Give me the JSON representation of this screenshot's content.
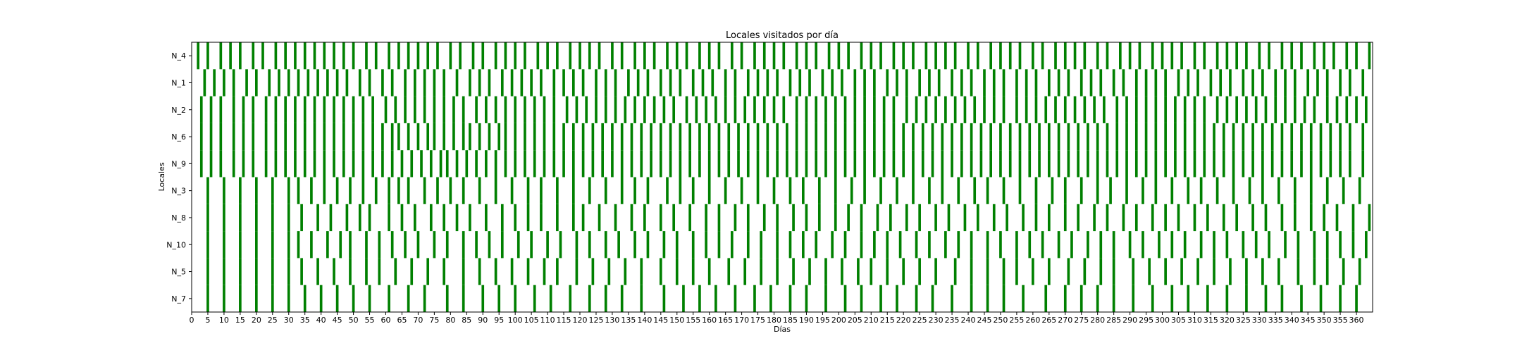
{
  "chart_data": {
    "type": "bar",
    "title": "Locales visitados por día",
    "xlabel": "Días",
    "ylabel": "Locales",
    "xlim": [
      0,
      365
    ],
    "x_ticks": [
      "0",
      "5",
      "10",
      "15",
      "20",
      "25",
      "30",
      "35",
      "40",
      "45",
      "50",
      "55",
      "60",
      "65",
      "70",
      "75",
      "80",
      "85",
      "90",
      "95",
      "100",
      "105",
      "110",
      "115",
      "120",
      "125",
      "130",
      "135",
      "140",
      "145",
      "150",
      "155",
      "160",
      "165",
      "170",
      "175",
      "180",
      "185",
      "190",
      "195",
      "200",
      "205",
      "210",
      "215",
      "220",
      "225",
      "230",
      "235",
      "240",
      "245",
      "250",
      "255",
      "260",
      "265",
      "270",
      "275",
      "280",
      "285",
      "290",
      "295",
      "300",
      "305",
      "310",
      "315",
      "320",
      "325",
      "330",
      "335",
      "340",
      "345",
      "350",
      "355",
      "360"
    ],
    "categories": [
      "N_4",
      "N_1",
      "N_2",
      "N_6",
      "N_9",
      "N_3",
      "N_8",
      "N_10",
      "N_5",
      "N_7"
    ],
    "bar_color": "#008000",
    "visits": {
      "N_4": [
        2,
        5,
        9,
        12,
        15,
        19,
        22,
        26,
        29,
        32,
        35,
        38,
        41,
        44,
        47,
        50,
        54,
        57,
        61,
        64,
        67,
        70,
        73,
        76,
        80,
        83,
        87,
        90,
        94,
        97,
        100,
        103,
        107,
        110,
        113,
        117,
        120,
        123,
        126,
        130,
        133,
        137,
        140,
        143,
        147,
        150,
        153,
        157,
        160,
        163,
        167,
        170,
        174,
        177,
        180,
        183,
        187,
        190,
        193,
        197,
        200,
        203,
        207,
        210,
        213,
        217,
        220,
        223,
        227,
        230,
        233,
        236,
        240,
        243,
        247,
        250,
        253,
        256,
        260,
        263,
        267,
        270,
        273,
        276,
        280,
        283,
        287,
        290,
        293,
        297,
        300,
        303,
        306,
        310,
        313,
        317,
        320,
        323,
        326,
        330,
        333,
        337,
        340,
        343,
        347,
        350,
        353,
        357,
        360,
        364
      ],
      "N_1": [
        4,
        7,
        10,
        13,
        17,
        20,
        24,
        27,
        30,
        33,
        36,
        39,
        42,
        45,
        48,
        52,
        55,
        59,
        62,
        66,
        69,
        72,
        75,
        78,
        82,
        86,
        89,
        92,
        96,
        99,
        102,
        105,
        108,
        112,
        115,
        118,
        121,
        125,
        128,
        131,
        135,
        138,
        141,
        145,
        148,
        151,
        155,
        158,
        161,
        165,
        168,
        172,
        175,
        178,
        181,
        185,
        188,
        191,
        195,
        198,
        201,
        205,
        208,
        211,
        215,
        218,
        221,
        225,
        228,
        231,
        235,
        238,
        241,
        245,
        248,
        251,
        255,
        258,
        261,
        265,
        268,
        271,
        275,
        278,
        281,
        285,
        288,
        292,
        295,
        298,
        301,
        305,
        308,
        311,
        315,
        318,
        321,
        325,
        328,
        331,
        335,
        338,
        341,
        345,
        348,
        351,
        355,
        358,
        362
      ],
      "N_2": [
        3,
        6,
        9,
        13,
        16,
        19,
        23,
        26,
        29,
        32,
        35,
        38,
        41,
        44,
        47,
        50,
        53,
        56,
        60,
        63,
        66,
        69,
        72,
        75,
        78,
        81,
        84,
        88,
        91,
        94,
        97,
        100,
        103,
        106,
        109,
        112,
        116,
        119,
        122,
        125,
        128,
        131,
        134,
        137,
        140,
        143,
        146,
        149,
        153,
        156,
        159,
        162,
        165,
        168,
        171,
        174,
        177,
        180,
        183,
        187,
        190,
        193,
        196,
        199,
        202,
        205,
        208,
        211,
        214,
        217,
        221,
        224,
        227,
        230,
        233,
        236,
        239,
        242,
        245,
        248,
        251,
        255,
        258,
        261,
        264,
        267,
        270,
        273,
        276,
        279,
        282,
        286,
        289,
        292,
        295,
        298,
        301,
        304,
        307,
        310,
        313,
        317,
        320,
        323,
        326,
        329,
        332,
        335,
        338,
        341,
        344,
        347,
        351,
        354,
        357,
        360,
        363
      ],
      "N_6": [
        3,
        6,
        9,
        13,
        16,
        19,
        23,
        26,
        29,
        32,
        35,
        38,
        41,
        44,
        47,
        50,
        53,
        56,
        59,
        62,
        64,
        67,
        70,
        73,
        75,
        78,
        81,
        84,
        86,
        89,
        92,
        95,
        97,
        100,
        103,
        106,
        109,
        112,
        115,
        118,
        121,
        124,
        127,
        130,
        133,
        136,
        139,
        142,
        145,
        148,
        151,
        154,
        157,
        160,
        163,
        166,
        169,
        172,
        175,
        178,
        181,
        184,
        187,
        190,
        193,
        196,
        199,
        202,
        205,
        208,
        211,
        214,
        217,
        220,
        223,
        226,
        229,
        232,
        235,
        238,
        241,
        244,
        247,
        250,
        253,
        256,
        259,
        262,
        265,
        268,
        271,
        274,
        277,
        280,
        283,
        286,
        289,
        292,
        295,
        298,
        301,
        304,
        307,
        310,
        313,
        316,
        319,
        322,
        325,
        328,
        331,
        334,
        337,
        340,
        343,
        346,
        349,
        352,
        355,
        358,
        362
      ],
      "N_9": [
        3,
        6,
        9,
        13,
        16,
        19,
        23,
        26,
        29,
        32,
        35,
        38,
        41,
        44,
        47,
        50,
        53,
        56,
        59,
        62,
        65,
        68,
        71,
        74,
        77,
        79,
        82,
        85,
        88,
        91,
        94,
        97,
        100,
        103,
        106,
        109,
        112,
        115,
        118,
        121,
        124,
        127,
        130,
        133,
        136,
        139,
        142,
        145,
        148,
        151,
        154,
        157,
        160,
        163,
        166,
        169,
        172,
        175,
        178,
        181,
        184,
        187,
        190,
        193,
        196,
        199,
        202,
        205,
        208,
        211,
        214,
        217,
        220,
        223,
        226,
        229,
        232,
        235,
        238,
        241,
        244,
        247,
        250,
        253,
        256,
        259,
        262,
        265,
        268,
        271,
        274,
        277,
        280,
        283,
        286,
        289,
        292,
        295,
        298,
        301,
        304,
        307,
        310,
        313,
        316,
        319,
        322,
        325,
        328,
        331,
        334,
        337,
        340,
        343,
        346,
        349,
        352,
        355,
        358,
        362
      ],
      "N_3": [
        5,
        10,
        15,
        20,
        25,
        30,
        33,
        37,
        41,
        45,
        49,
        53,
        57,
        61,
        64,
        67,
        72,
        76,
        80,
        84,
        89,
        94,
        99,
        104,
        108,
        113,
        118,
        123,
        128,
        133,
        137,
        141,
        147,
        151,
        155,
        160,
        165,
        170,
        175,
        180,
        185,
        189,
        194,
        199,
        204,
        208,
        213,
        218,
        223,
        228,
        232,
        237,
        242,
        246,
        251,
        256,
        261,
        266,
        270,
        275,
        280,
        284,
        289,
        294,
        298,
        303,
        308,
        312,
        317,
        322,
        327,
        331,
        336,
        341,
        346,
        351,
        356,
        361
      ],
      "N_8": [
        5,
        10,
        15,
        20,
        25,
        30,
        34,
        39,
        43,
        48,
        52,
        55,
        61,
        65,
        69,
        74,
        78,
        82,
        86,
        91,
        96,
        100,
        104,
        108,
        113,
        118,
        121,
        126,
        131,
        136,
        140,
        145,
        149,
        154,
        159,
        163,
        168,
        172,
        177,
        181,
        186,
        190,
        194,
        199,
        203,
        207,
        212,
        216,
        221,
        225,
        230,
        234,
        239,
        243,
        248,
        252,
        257,
        261,
        265,
        270,
        274,
        279,
        283,
        288,
        292,
        297,
        301,
        305,
        310,
        314,
        319,
        323,
        328,
        332,
        337,
        341,
        346,
        350,
        354,
        359,
        364
      ],
      "N_10": [
        5,
        10,
        15,
        20,
        25,
        30,
        33,
        37,
        42,
        46,
        49,
        54,
        58,
        62,
        66,
        70,
        75,
        79,
        84,
        88,
        92,
        96,
        101,
        105,
        110,
        114,
        119,
        123,
        128,
        132,
        137,
        141,
        146,
        150,
        155,
        159,
        163,
        167,
        172,
        176,
        181,
        185,
        189,
        193,
        198,
        202,
        207,
        211,
        215,
        219,
        224,
        228,
        233,
        237,
        241,
        246,
        250,
        255,
        259,
        263,
        268,
        272,
        277,
        281,
        285,
        290,
        294,
        299,
        303,
        307,
        312,
        316,
        320,
        325,
        329,
        333,
        338,
        342,
        347,
        351,
        355,
        359,
        363
      ],
      "N_5": [
        5,
        10,
        15,
        20,
        25,
        30,
        34,
        39,
        44,
        49,
        54,
        58,
        63,
        68,
        73,
        78,
        84,
        89,
        94,
        99,
        104,
        109,
        113,
        119,
        124,
        129,
        134,
        139,
        145,
        150,
        155,
        160,
        166,
        171,
        176,
        181,
        186,
        191,
        196,
        201,
        206,
        210,
        215,
        220,
        225,
        230,
        236,
        241,
        246,
        251,
        255,
        260,
        265,
        271,
        276,
        281,
        285,
        291,
        296,
        301,
        306,
        311,
        316,
        321,
        326,
        331,
        336,
        342,
        347,
        351,
        356,
        361
      ],
      "N_7": [
        5,
        10,
        15,
        20,
        25,
        30,
        35,
        40,
        45,
        50,
        55,
        61,
        67,
        72,
        79,
        84,
        90,
        95,
        100,
        106,
        111,
        117,
        123,
        128,
        133,
        139,
        146,
        152,
        157,
        162,
        168,
        174,
        179,
        185,
        190,
        196,
        202,
        207,
        213,
        218,
        224,
        229,
        235,
        241,
        246,
        251,
        257,
        264,
        270,
        275,
        280,
        285,
        291,
        297,
        303,
        308,
        314,
        320,
        326,
        332,
        337,
        343,
        349,
        355,
        360
      ]
    }
  }
}
